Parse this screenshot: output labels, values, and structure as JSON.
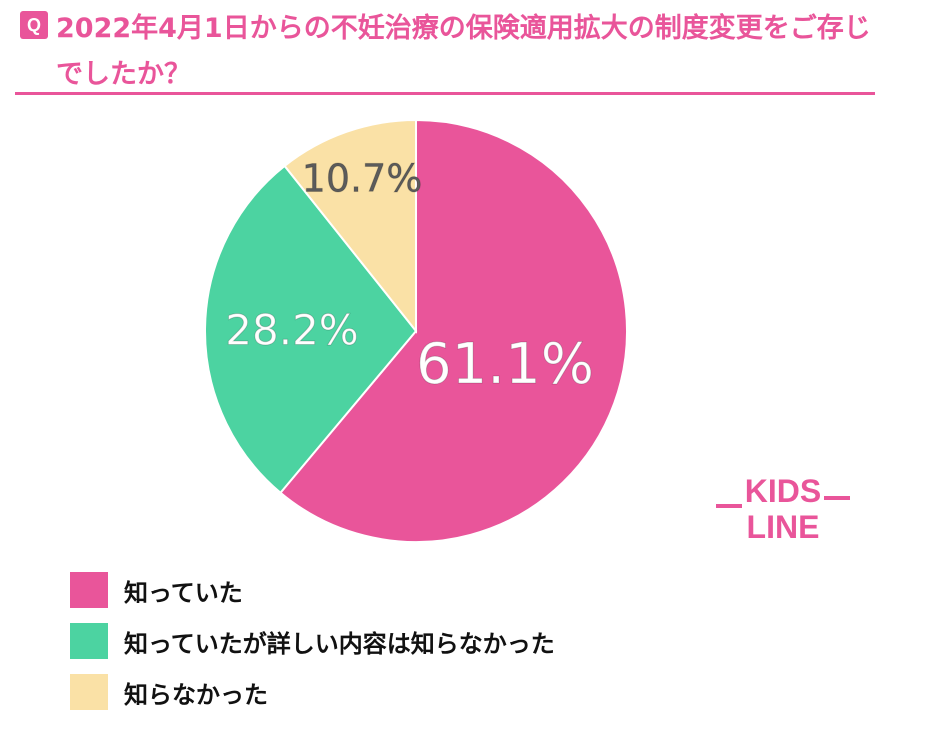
{
  "header": {
    "icon_letter": "Q",
    "title": "2022年4月1日からの不妊治療の保険適用拡大の制度変更をご存じでしたか？"
  },
  "logo": {
    "line1": "KIDS",
    "line2": "LINE"
  },
  "chart_data": {
    "type": "pie",
    "categories": [
      "知っていた",
      "知っていたが詳しい内容は知らなかった",
      "知らなかった"
    ],
    "values": [
      61.1,
      28.2,
      10.7
    ],
    "labels": [
      "61.1%",
      "28.2%",
      "10.7%"
    ],
    "colors": [
      "#e9559a",
      "#4cd3a1",
      "#fae1a6"
    ],
    "label_colors": [
      "#ffffff",
      "#ffffff",
      "#5b5b5b"
    ],
    "legend_position": "bottom-left"
  }
}
